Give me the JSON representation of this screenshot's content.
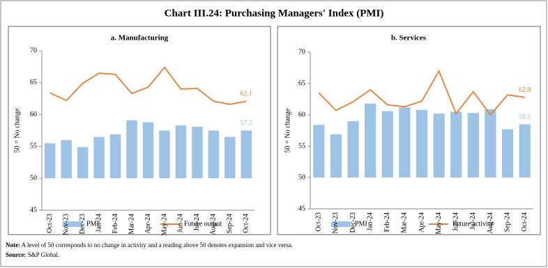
{
  "title": "Chart III.24: Purchasing Managers' Index (PMI)",
  "note_label": "Note:",
  "note": "A level of 50 corresponds to no change in activity and a reading above 50 denotes expansion and vice versa.",
  "source_label": "Source:",
  "source": "S&P Global.",
  "chart_data": [
    {
      "type": "bar_line",
      "title": "a. Manufacturing",
      "y_label": "50 = No change",
      "categories": [
        "Oct-23",
        "Nov-23",
        "Dec-23",
        "Jan-24",
        "Feb-24",
        "Mar-24",
        "Apr-24",
        "May-24",
        "Jun-24",
        "Jul-24",
        "Aug-24",
        "Sep-24",
        "Oct-24"
      ],
      "series": [
        {
          "name": "PMI",
          "kind": "bar",
          "color": "#9dc3e6",
          "values": [
            55.5,
            56.0,
            54.9,
            56.5,
            56.9,
            59.1,
            58.8,
            57.5,
            58.3,
            58.1,
            57.5,
            56.5,
            57.5
          ],
          "data_label_index": 12
        },
        {
          "name": "Future output",
          "kind": "line",
          "color": "#ed7d31",
          "values": [
            63.4,
            62.2,
            64.9,
            66.5,
            66.3,
            63.3,
            64.3,
            67.4,
            64.0,
            64.1,
            62.1,
            61.6,
            62.1
          ],
          "data_label_index": 12
        }
      ],
      "ylim": [
        45,
        70
      ],
      "yticks": [
        45,
        50,
        55,
        60,
        65,
        70
      ],
      "bar_base": 50
    },
    {
      "type": "bar_line",
      "title": "b. Services",
      "y_label": "50 = No change",
      "categories": [
        "Oct-23",
        "Nov-23",
        "Dec-23",
        "Jan-24",
        "Feb-24",
        "Mar-24",
        "Apr-24",
        "May-24",
        "Jun-24",
        "Jul-24",
        "Aug-24",
        "Sep-24",
        "Oct-24"
      ],
      "series": [
        {
          "name": "PMI",
          "kind": "bar",
          "color": "#9dc3e6",
          "values": [
            58.4,
            56.9,
            59.0,
            61.8,
            60.6,
            61.2,
            60.8,
            60.2,
            60.5,
            60.3,
            60.9,
            57.7,
            58.5
          ],
          "data_label_index": 12
        },
        {
          "name": "Future activity",
          "kind": "line",
          "color": "#ed7d31",
          "values": [
            63.5,
            60.7,
            62.1,
            64.0,
            61.6,
            61.3,
            62.2,
            67.0,
            60.2,
            63.7,
            60.0,
            63.2,
            62.8
          ],
          "data_label_index": 12
        }
      ],
      "ylim": [
        45,
        70
      ],
      "yticks": [
        45,
        50,
        55,
        60,
        65,
        70
      ],
      "bar_base": 50
    }
  ]
}
